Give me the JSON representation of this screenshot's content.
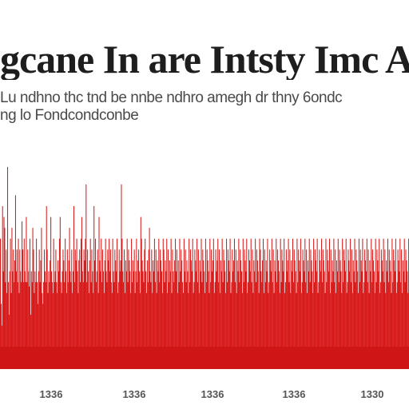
{
  "header": {
    "title": "gcane In are Intsty Imc Ang",
    "subtitle_line1": "Lu ndhno thc tnd be nnbe ndhro amegh dr thny 6ondc",
    "subtitle_line2": "ng lo Fondcondconbe"
  },
  "colors": {
    "bar": "#d81a1a",
    "baseline": "#cf1515",
    "title": "#1e1e1e",
    "subtitle": "#4a4a4a",
    "tick": "#555555"
  },
  "chart_data": {
    "type": "bar",
    "title": "gcane In are Intsty Imc Ang",
    "xlabel": "",
    "ylabel": "",
    "ylim": [
      0,
      100
    ],
    "grid": false,
    "legend": "none",
    "x_tick_labels": [
      "1336",
      "1336",
      "1336",
      "1336",
      "1330"
    ],
    "values": [
      60,
      30,
      20,
      75,
      45,
      70,
      65,
      40,
      55,
      35,
      93,
      40,
      25,
      45,
      60,
      35,
      65,
      45,
      55,
      40,
      50,
      80,
      45,
      55,
      40,
      60,
      35,
      55,
      45,
      40,
      68,
      55,
      40,
      60,
      45,
      40,
      70,
      40,
      55,
      45,
      38,
      60,
      25,
      45,
      40,
      65,
      55,
      35,
      45,
      40,
      60,
      40,
      30,
      45,
      55,
      40,
      50,
      65,
      35,
      30,
      40,
      55,
      45,
      40,
      75,
      55,
      35,
      45,
      40,
      50,
      70,
      45,
      40,
      35,
      60,
      40,
      45,
      55,
      40,
      35,
      50,
      45,
      60,
      70,
      40,
      35,
      45,
      55,
      50,
      40,
      60,
      45,
      35,
      55,
      40,
      50,
      65,
      45,
      40,
      55,
      35,
      45,
      75,
      40,
      55,
      50,
      60,
      45,
      35,
      50,
      55,
      40,
      60,
      70,
      45,
      40,
      55,
      50,
      60,
      85,
      40,
      55,
      45,
      35,
      50,
      60,
      40,
      55,
      45,
      35,
      75,
      50,
      60,
      40,
      45,
      55,
      35,
      70,
      50,
      45,
      60,
      40,
      55,
      45,
      35,
      50,
      60,
      45,
      40,
      55,
      50,
      60,
      45,
      55,
      40,
      35,
      60,
      45,
      40,
      55,
      50,
      45,
      60,
      35,
      40,
      55,
      45,
      50,
      85,
      60,
      45,
      40,
      55,
      35,
      50,
      45,
      60,
      40,
      55,
      50,
      45,
      35,
      60,
      40,
      50,
      45,
      55,
      35,
      45,
      60,
      40,
      50,
      55,
      45,
      35,
      70,
      60,
      50,
      45,
      40,
      55,
      60,
      45,
      35,
      50,
      40,
      55,
      65,
      45,
      40,
      55,
      35,
      50,
      45,
      60,
      40,
      55,
      35,
      50,
      45,
      60,
      40,
      55,
      50,
      45,
      35,
      60,
      55,
      40,
      50,
      45,
      60,
      35,
      55,
      40,
      50,
      45,
      60,
      35,
      55,
      45,
      40,
      50,
      60,
      45,
      55,
      35,
      50,
      40,
      60,
      45,
      55,
      50,
      40,
      35,
      60,
      45,
      55,
      40,
      50,
      45,
      35,
      60,
      40,
      55,
      50,
      45,
      60,
      35,
      40,
      55,
      50,
      45,
      60,
      40,
      55,
      35,
      50,
      45,
      60,
      40,
      55,
      50,
      45,
      35,
      60,
      40,
      55,
      50,
      45,
      35,
      60,
      40,
      55,
      45,
      50,
      60,
      35,
      40,
      55,
      45,
      50,
      60,
      40,
      55,
      35,
      50,
      45,
      60,
      40,
      55,
      50,
      45,
      35,
      60,
      40,
      55,
      50,
      45,
      60,
      35,
      40,
      55,
      45,
      50,
      60,
      40,
      55,
      35,
      50,
      45,
      60,
      40,
      55,
      50,
      45,
      35,
      60,
      40,
      55,
      50,
      45,
      60,
      35,
      40,
      55,
      50,
      45,
      60,
      40,
      55,
      35,
      50,
      45,
      60,
      40,
      55,
      50,
      45,
      35,
      60,
      55,
      45,
      40,
      50,
      60,
      35,
      55,
      40,
      50,
      45,
      60,
      35,
      40,
      55,
      50,
      45,
      60,
      40,
      55,
      35,
      50,
      45,
      60,
      40,
      55,
      50,
      45,
      35,
      60,
      40,
      55,
      50,
      45,
      60,
      35,
      40,
      55,
      45,
      50,
      60,
      40,
      55,
      35,
      50,
      45,
      60,
      40,
      55,
      50,
      45,
      35,
      60,
      40,
      55,
      50,
      45,
      60,
      35,
      40,
      55,
      50,
      45,
      60,
      40,
      55,
      35,
      50,
      45,
      60,
      40,
      55,
      50,
      45,
      35,
      60,
      40,
      55,
      50,
      45,
      60,
      35,
      40,
      55,
      50,
      45,
      60,
      40,
      55,
      50,
      45,
      35,
      60,
      40,
      55,
      50,
      45,
      60,
      35,
      55,
      40,
      50,
      45,
      60,
      40,
      55,
      35,
      50,
      45,
      60,
      40,
      55,
      50,
      45,
      35,
      60,
      40,
      55,
      50,
      45,
      60,
      35,
      40,
      55,
      50,
      45,
      60,
      40,
      55,
      35,
      50,
      45,
      60,
      40,
      55,
      50,
      45,
      35,
      60,
      40,
      55,
      50,
      45,
      60,
      35,
      40,
      55,
      50,
      45,
      60,
      40,
      55,
      35,
      50,
      45,
      60,
      40,
      55,
      50,
      45,
      35,
      60,
      40,
      55,
      50,
      45,
      60,
      35,
      40,
      55,
      50,
      45,
      60,
      40,
      55,
      35,
      50,
      45,
      60,
      40,
      55,
      50,
      45,
      35,
      60,
      40,
      55,
      50,
      45,
      60,
      35,
      40,
      55,
      50,
      45,
      60,
      40,
      55,
      35,
      50,
      45,
      60,
      40,
      55,
      50,
      45,
      35,
      60
    ]
  }
}
